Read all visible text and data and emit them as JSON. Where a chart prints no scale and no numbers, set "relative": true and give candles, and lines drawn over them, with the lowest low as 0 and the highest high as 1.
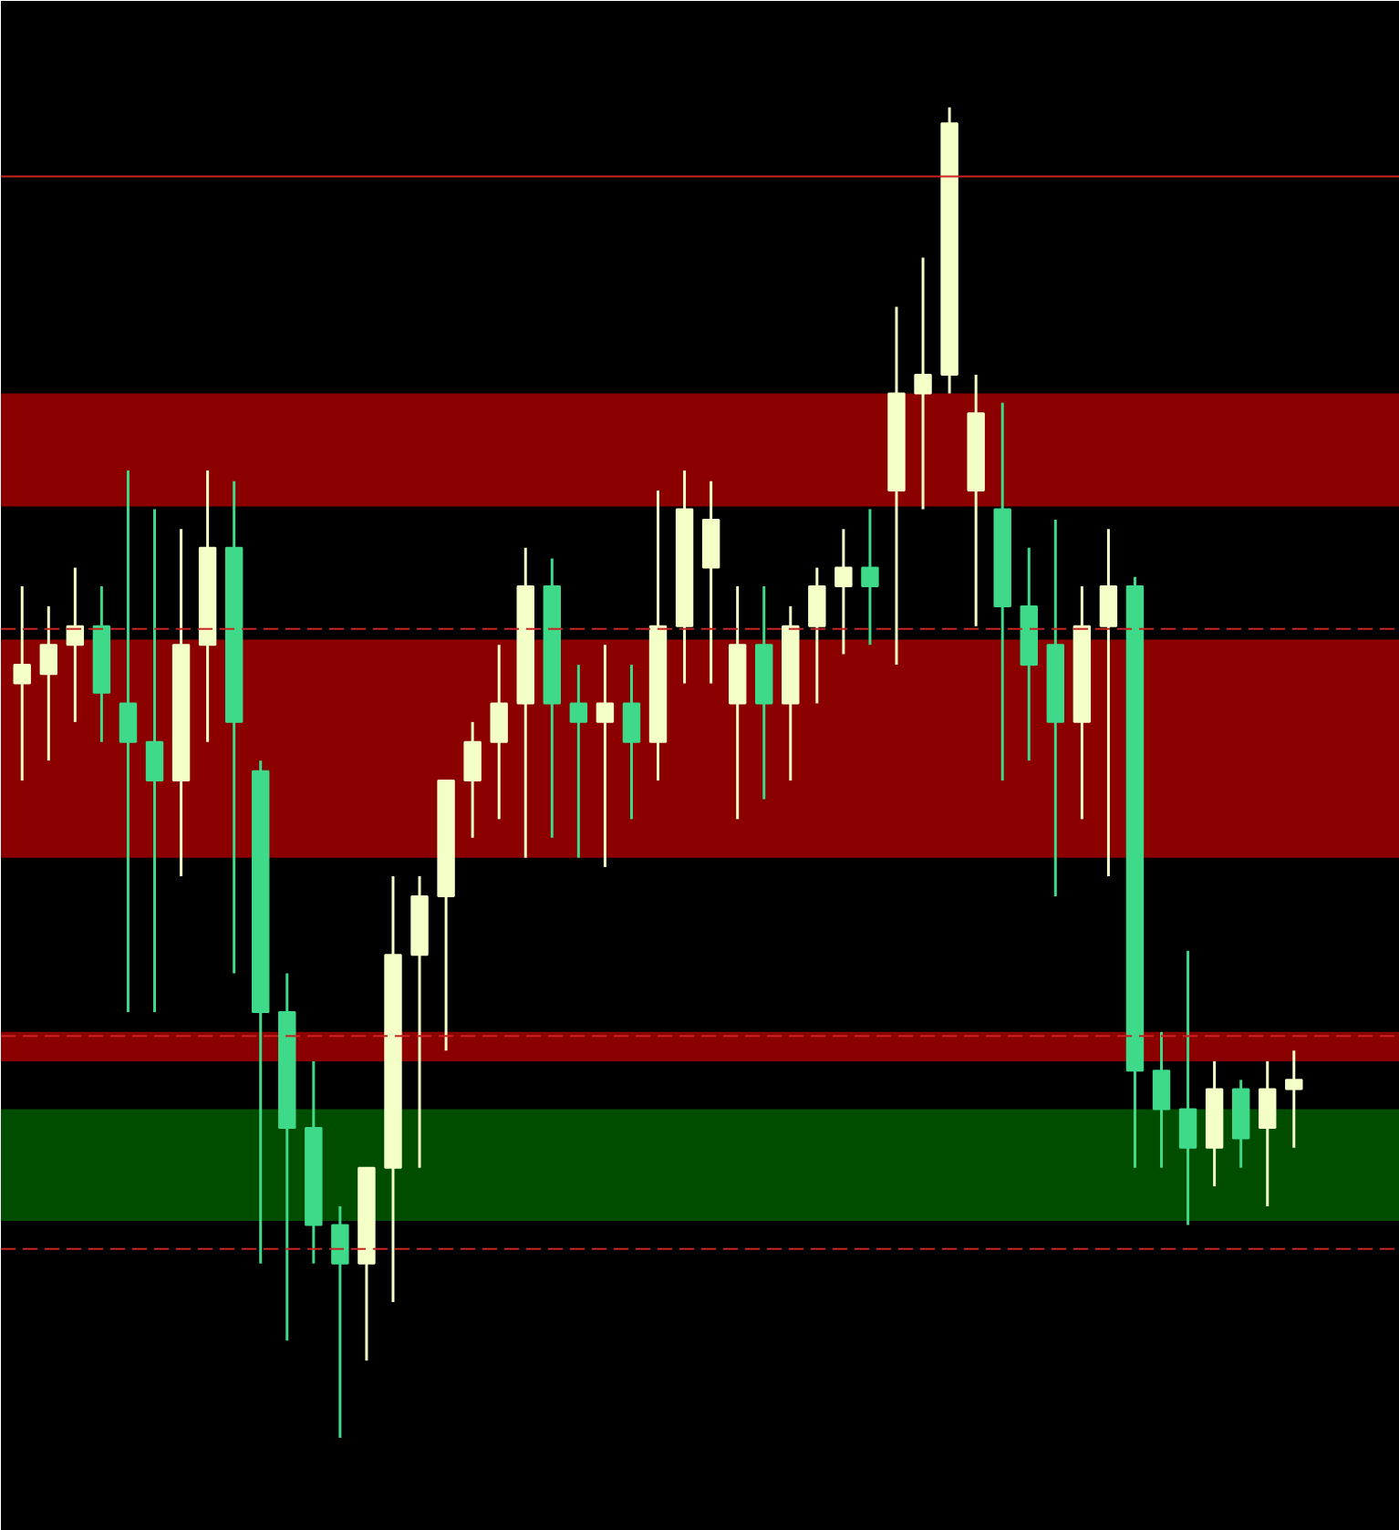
{
  "chart_data": {
    "type": "candlestick",
    "relative": true,
    "grid": false,
    "colors": [
      "#f4ffc8",
      "#f4ffc8",
      "#f4ffc8",
      "#3fd98a",
      "#3fd98a",
      "#3fd98a",
      "#f4ffc8",
      "#f4ffc8",
      "#3fd98a",
      "#3fd98a",
      "#3fd98a",
      "#3fd98a",
      "#3fd98a",
      "#f4ffc8",
      "#f4ffc8",
      "#f4ffc8",
      "#f4ffc8",
      "#f4ffc8",
      "#f4ffc8",
      "#f4ffc8",
      "#3fd98a",
      "#3fd98a",
      "#f4ffc8",
      "#3fd98a",
      "#f4ffc8",
      "#f4ffc8",
      "#f4ffc8",
      "#f4ffc8",
      "#3fd98a",
      "#f4ffc8",
      "#f4ffc8",
      "#f4ffc8",
      "#3fd98a",
      "#f4ffc8",
      "#f4ffc8",
      "#f4ffc8",
      "#f4ffc8",
      "#3fd98a",
      "#3fd98a",
      "#3fd98a",
      "#f4ffc8",
      "#f4ffc8",
      "#3fd98a",
      "#3fd98a",
      "#3fd98a",
      "#f4ffc8",
      "#3fd98a",
      "#f4ffc8",
      "#f4ffc8"
    ],
    "categories": [
      null,
      null,
      null,
      null,
      null,
      null,
      null,
      null,
      null,
      null,
      null,
      null,
      null,
      null,
      null,
      null,
      null,
      null,
      null,
      null,
      null,
      null,
      null,
      null,
      null,
      null,
      null,
      null,
      null,
      null,
      null,
      null,
      null,
      null,
      null,
      null,
      null,
      null,
      null,
      null,
      null,
      null,
      null,
      null,
      null,
      null,
      null,
      null,
      null
    ],
    "ohlc": [
      [
        0.567,
        0.64,
        0.494,
        0.581
      ],
      [
        0.574,
        0.625,
        0.509,
        0.596
      ],
      [
        0.596,
        0.654,
        0.538,
        0.61
      ],
      [
        0.61,
        0.64,
        0.523,
        0.56
      ],
      [
        0.552,
        0.727,
        0.32,
        0.523
      ],
      [
        0.523,
        0.698,
        0.32,
        0.494
      ],
      [
        0.494,
        0.683,
        0.422,
        0.596
      ],
      [
        0.596,
        0.727,
        0.523,
        0.669
      ],
      [
        0.669,
        0.719,
        0.349,
        0.538
      ],
      [
        0.501,
        0.509,
        0.131,
        0.32
      ],
      [
        0.32,
        0.349,
        0.073,
        0.233
      ],
      [
        0.233,
        0.283,
        0.131,
        0.16
      ],
      [
        0.16,
        0.174,
        0,
        0.131
      ],
      [
        0.131,
        0.203,
        0.058,
        0.203
      ],
      [
        0.203,
        0.422,
        0.102,
        0.363
      ],
      [
        0.363,
        0.422,
        0.203,
        0.407
      ],
      [
        0.407,
        0.494,
        0.291,
        0.494
      ],
      [
        0.494,
        0.538,
        0.451,
        0.523
      ],
      [
        0.523,
        0.596,
        0.465,
        0.552
      ],
      [
        0.552,
        0.669,
        0.436,
        0.64
      ],
      [
        0.64,
        0.661,
        0.451,
        0.552
      ],
      [
        0.552,
        0.581,
        0.436,
        0.538
      ],
      [
        0.538,
        0.596,
        0.429,
        0.552
      ],
      [
        0.552,
        0.581,
        0.465,
        0.523
      ],
      [
        0.523,
        0.712,
        0.494,
        0.61
      ],
      [
        0.61,
        0.727,
        0.567,
        0.698
      ],
      [
        0.654,
        0.719,
        0.567,
        0.69
      ],
      [
        0.552,
        0.64,
        0.465,
        0.596
      ],
      [
        0.596,
        0.64,
        0.48,
        0.552
      ],
      [
        0.552,
        0.625,
        0.494,
        0.61
      ],
      [
        0.61,
        0.654,
        0.552,
        0.64
      ],
      [
        0.64,
        0.683,
        0.589,
        0.654
      ],
      [
        0.654,
        0.698,
        0.596,
        0.64
      ],
      [
        0.712,
        0.85,
        0.581,
        0.785
      ],
      [
        0.785,
        0.887,
        0.698,
        0.799
      ],
      [
        0.799,
        1.0,
        0.785,
        0.988
      ],
      [
        0.712,
        0.799,
        0.61,
        0.77
      ],
      [
        0.698,
        0.778,
        0.494,
        0.625
      ],
      [
        0.625,
        0.669,
        0.509,
        0.581
      ],
      [
        0.596,
        0.69,
        0.407,
        0.538
      ],
      [
        0.538,
        0.64,
        0.465,
        0.61
      ],
      [
        0.61,
        0.683,
        0.422,
        0.64
      ],
      [
        0.64,
        0.647,
        0.203,
        0.276
      ],
      [
        0.276,
        0.305,
        0.203,
        0.247
      ],
      [
        0.247,
        0.366,
        0.16,
        0.218
      ],
      [
        0.218,
        0.283,
        0.189,
        0.262
      ],
      [
        0.262,
        0.269,
        0.203,
        0.225
      ],
      [
        0.233,
        0.283,
        0.174,
        0.262
      ],
      [
        0.262,
        0.291,
        0.218,
        0.269
      ]
    ],
    "bands": [
      {
        "axis": "y",
        "from": 0.7,
        "to": 0.785,
        "color": "#8b0000"
      },
      {
        "axis": "y",
        "from": 0.436,
        "to": 0.6,
        "color": "#8b0000"
      },
      {
        "axis": "y",
        "from": 0.283,
        "to": 0.305,
        "color": "#8b0000"
      },
      {
        "axis": "y",
        "from": 0.163,
        "to": 0.247,
        "color": "#004d00"
      }
    ],
    "ref_lines": [
      {
        "axis": "y",
        "value": 0.948,
        "color": "#cc2222",
        "line_style": "solid"
      },
      {
        "axis": "y",
        "value": 0.608,
        "color": "#cc2222",
        "line_style": "dashed"
      },
      {
        "axis": "y",
        "value": 0.302,
        "color": "#cc2222",
        "line_style": "dashed"
      },
      {
        "axis": "y",
        "value": 0.142,
        "color": "#cc2222",
        "line_style": "dashed"
      }
    ]
  }
}
